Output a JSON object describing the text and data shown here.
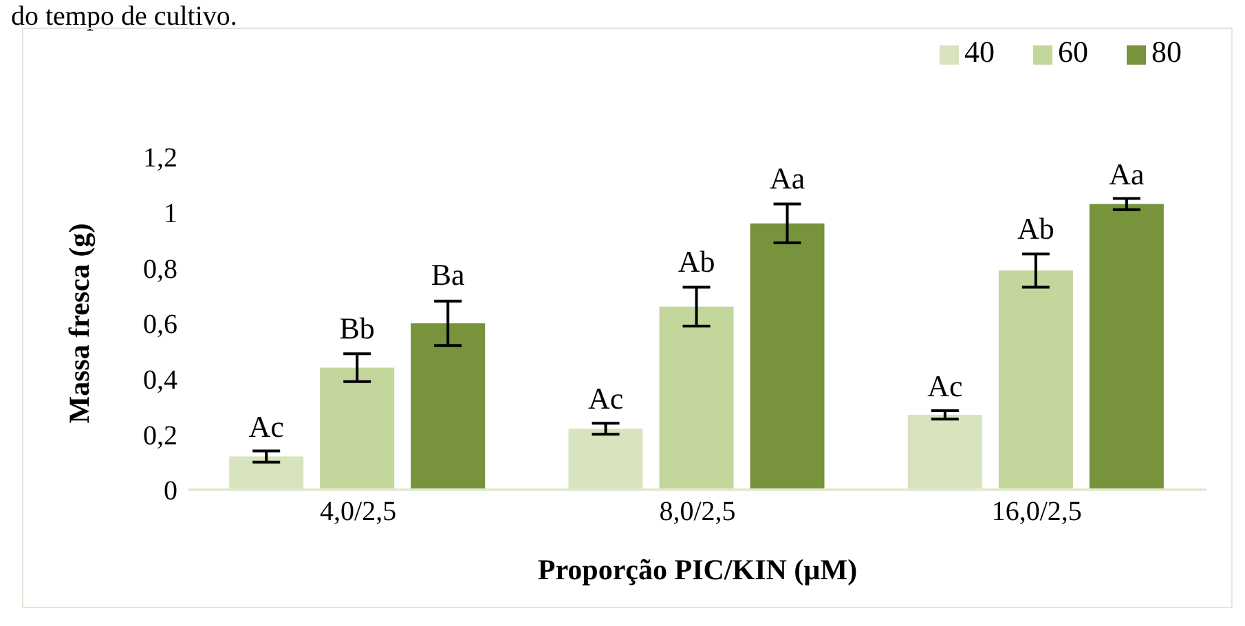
{
  "chart_data": {
    "type": "bar",
    "annotations": [
      "do tempo de cultivo."
    ],
    "xlabel": "Proporção PIC/KIN (µM)",
    "ylabel": "Massa fresca (g)",
    "categories": [
      "4,0/2,5",
      "8,0/2,5",
      "16,0/2,5"
    ],
    "series": [
      {
        "name": "40",
        "color": "#d7e4bd",
        "values": [
          0.12,
          0.22,
          0.27
        ],
        "errors": [
          0.02,
          0.02,
          0.015
        ],
        "value_labels": [
          "Ac",
          "Ac",
          "Ac"
        ]
      },
      {
        "name": "60",
        "color": "#c3d69b",
        "values": [
          0.44,
          0.66,
          0.79
        ],
        "errors": [
          0.05,
          0.07,
          0.06
        ],
        "value_labels": [
          "Bb",
          "Ab",
          "Ab"
        ]
      },
      {
        "name": "80",
        "color": "#77933c",
        "values": [
          0.6,
          0.96,
          1.03
        ],
        "errors": [
          0.08,
          0.07,
          0.02
        ],
        "value_labels": [
          "Ba",
          "Aa",
          "Aa"
        ]
      }
    ],
    "ylim": [
      0,
      1.2
    ],
    "yticks": [
      {
        "value": 0,
        "label": "0"
      },
      {
        "value": 0.2,
        "label": "0,2"
      },
      {
        "value": 0.4,
        "label": "0,4"
      },
      {
        "value": 0.6,
        "label": "0,6"
      },
      {
        "value": 0.8,
        "label": "0,8"
      },
      {
        "value": 1,
        "label": "1"
      },
      {
        "value": 1.2,
        "label": "1,2"
      }
    ],
    "grid": false,
    "legend": "top right"
  }
}
